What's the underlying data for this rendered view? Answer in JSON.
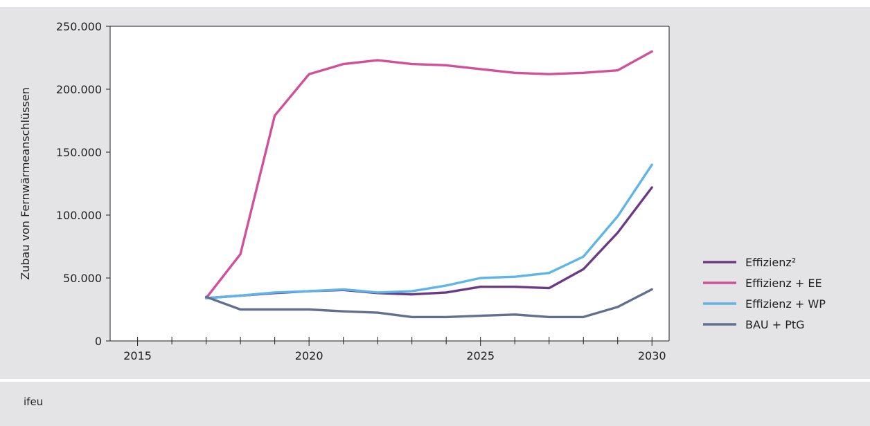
{
  "source": "ifeu",
  "chart_data": {
    "type": "line",
    "title": "",
    "xlabel": "",
    "ylabel": "Zubau von Fernwärmeanschlüssen",
    "xlim": [
      2014.2,
      2030.5
    ],
    "ylim": [
      0,
      250000
    ],
    "x_ticks": [
      2015,
      2020,
      2025,
      2030
    ],
    "x_tick_labels": [
      "2015",
      "2020",
      "2025",
      "2030"
    ],
    "y_ticks": [
      0,
      50000,
      100000,
      150000,
      200000,
      250000
    ],
    "y_tick_labels": [
      "0",
      "50.000",
      "100.000",
      "150.000",
      "200.000",
      "250.000"
    ],
    "grid": "horizontal dashed",
    "legend_position": "right",
    "x": [
      2017,
      2018,
      2019,
      2020,
      2021,
      2022,
      2023,
      2024,
      2025,
      2026,
      2027,
      2028,
      2029,
      2030
    ],
    "series": [
      {
        "name": "Effizienz²",
        "color": "#6b3a84",
        "values": [
          34000,
          36000,
          38000,
          39500,
          40500,
          38000,
          37000,
          38500,
          43000,
          43000,
          42000,
          57000,
          86000,
          122000
        ]
      },
      {
        "name": "Effizienz + EE",
        "color": "#d0509a",
        "values": [
          34000,
          69000,
          179000,
          212000,
          220000,
          223000,
          220000,
          219000,
          216000,
          213000,
          212000,
          213000,
          215000,
          230000
        ]
      },
      {
        "name": "Effizienz + WP",
        "color": "#5fb4e8",
        "values": [
          34000,
          36000,
          38500,
          39500,
          41000,
          38500,
          39500,
          44000,
          50000,
          51000,
          54000,
          67000,
          99000,
          140000
        ]
      },
      {
        "name": "BAU + PtG",
        "color": "#61708f",
        "values": [
          35000,
          25000,
          25000,
          25000,
          23500,
          22500,
          19000,
          19000,
          20000,
          21000,
          19000,
          19000,
          27000,
          41000
        ]
      }
    ]
  }
}
